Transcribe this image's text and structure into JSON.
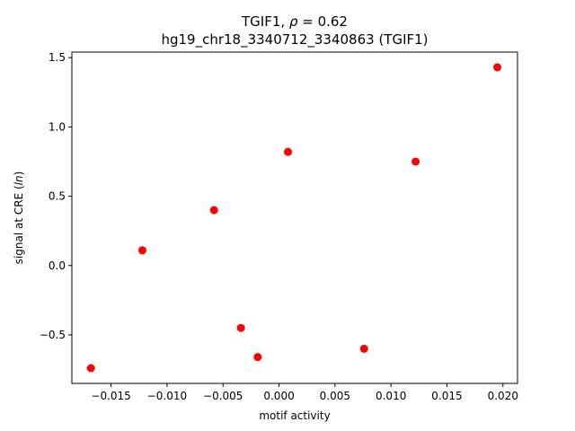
{
  "chart_data": {
    "type": "scatter",
    "title": "TGIF1, ρ = 0.62",
    "title_parts": {
      "before": "TGIF1, ",
      "symbol": "ρ",
      "after": " = 0.62"
    },
    "subtitle": "hg19_chr18_3340712_3340863 (TGIF1)",
    "xlabel": "motif activity",
    "ylabel": "signal at CRE (ln)",
    "ylabel_parts": {
      "before": "signal at CRE (",
      "italic": "ln",
      "after": ")"
    },
    "xlim": [
      -0.0185,
      0.0213
    ],
    "ylim": [
      -0.85,
      1.54
    ],
    "xticks": [
      -0.015,
      -0.01,
      -0.005,
      0.0,
      0.005,
      0.01,
      0.015,
      0.02
    ],
    "xtick_labels": [
      "−0.015",
      "−0.010",
      "−0.005",
      "0.000",
      "0.005",
      "0.010",
      "0.015",
      "0.020"
    ],
    "yticks": [
      -0.5,
      0.0,
      0.5,
      1.0,
      1.5
    ],
    "ytick_labels": [
      "−0.5",
      "0.0",
      "0.5",
      "1.0",
      "1.5"
    ],
    "grid": false,
    "marker_color": "#ff0000",
    "points": [
      {
        "x": -0.0168,
        "y": -0.74
      },
      {
        "x": -0.0122,
        "y": 0.11
      },
      {
        "x": -0.0058,
        "y": 0.4
      },
      {
        "x": -0.0034,
        "y": -0.45
      },
      {
        "x": -0.0019,
        "y": -0.66
      },
      {
        "x": 0.0008,
        "y": 0.82
      },
      {
        "x": 0.0076,
        "y": -0.6
      },
      {
        "x": 0.0122,
        "y": 0.75
      },
      {
        "x": 0.0195,
        "y": 1.43
      }
    ]
  }
}
